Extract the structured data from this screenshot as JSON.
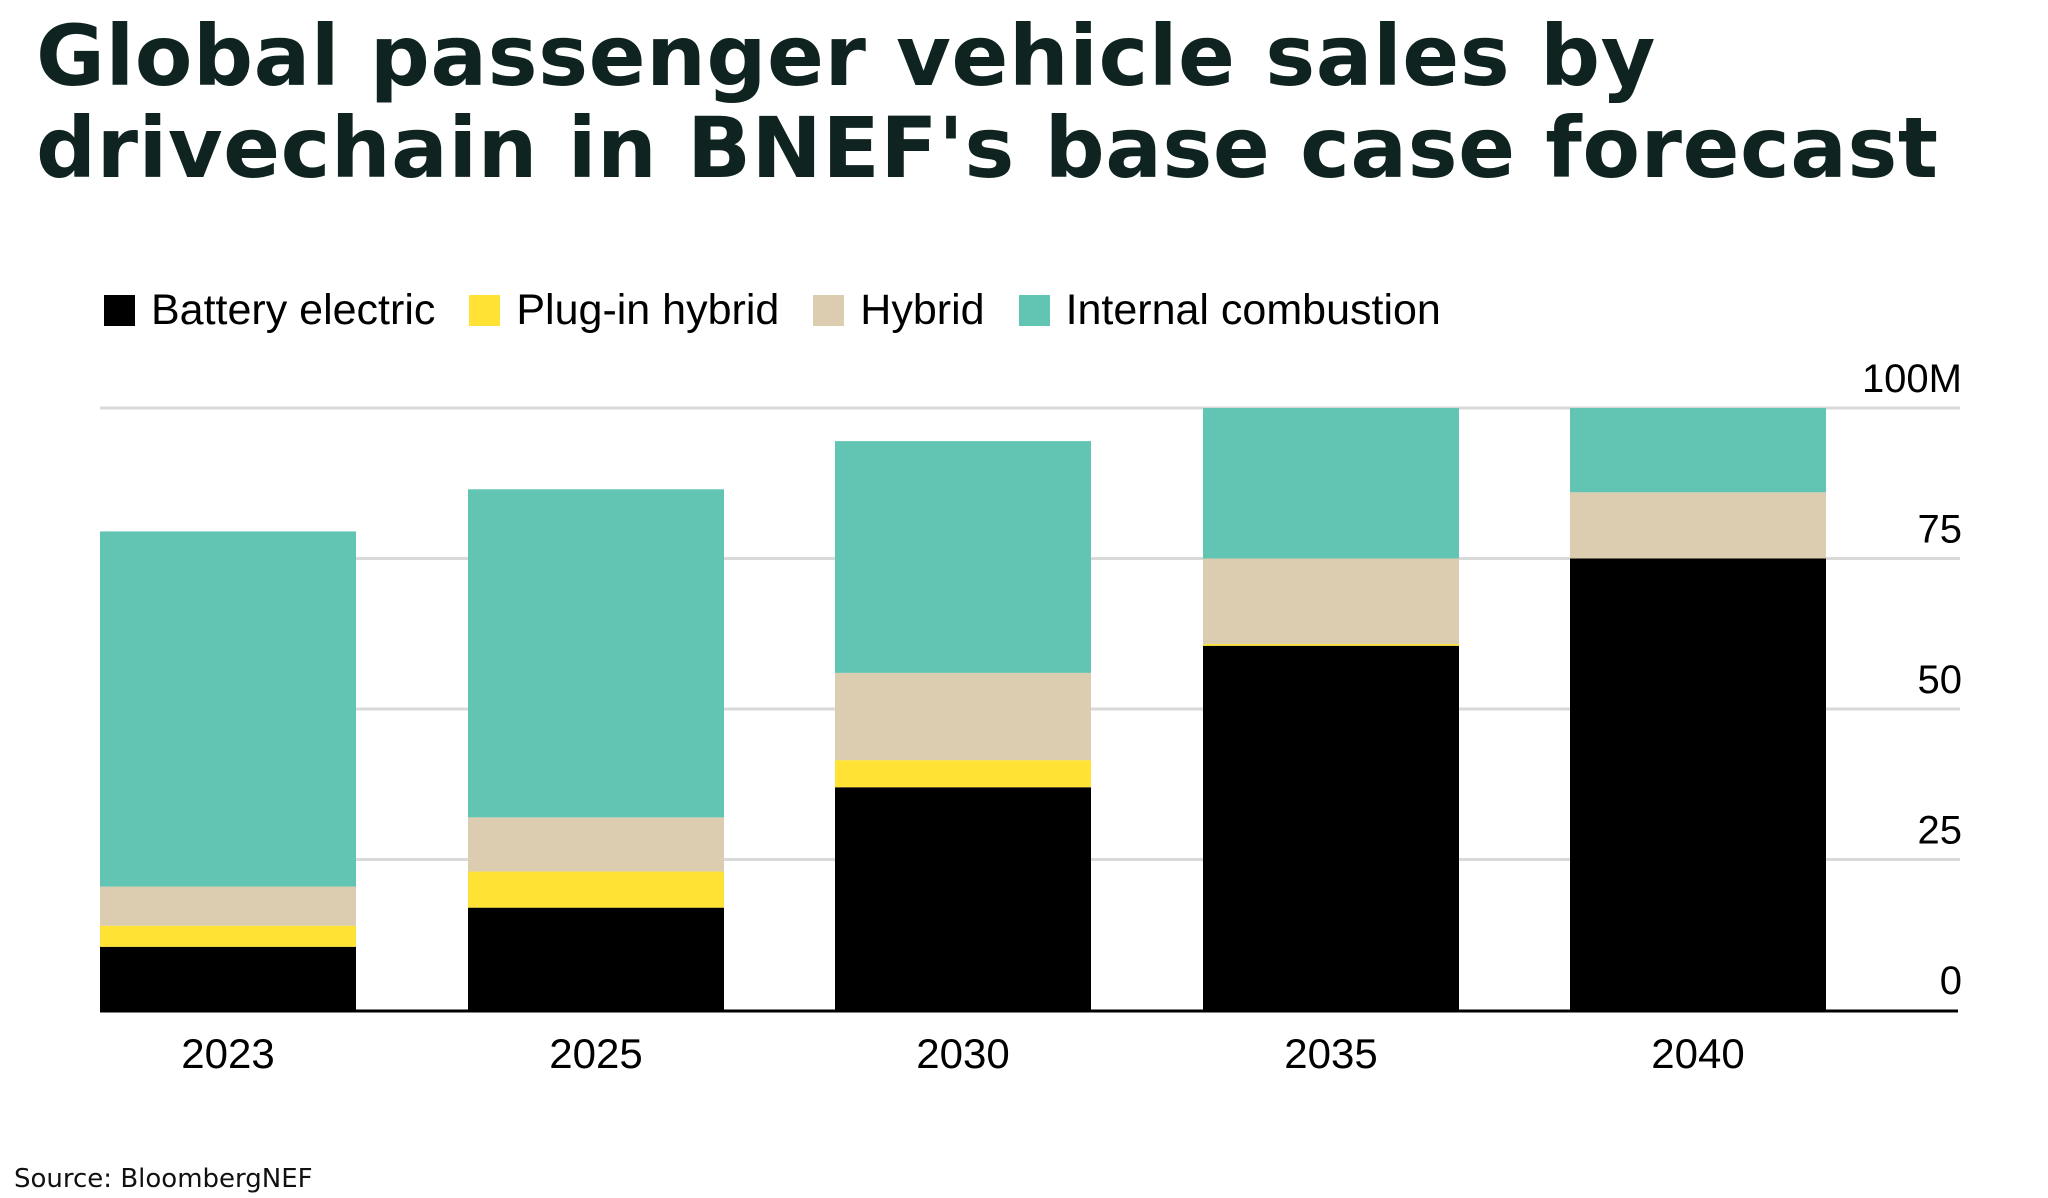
{
  "title": "Global passenger vehicle sales by drivechain in BNEF's base case forecast",
  "source": "Source: BloombergNEF",
  "colors": {
    "battery_electric": "#000000",
    "plug_in_hybrid": "#ffe233",
    "hybrid": "#ddcdb0",
    "internal_combustion": "#62c4b2",
    "gridline": "#d9d9d9",
    "axis": "#000000"
  },
  "legend": {
    "items": [
      {
        "label": "Battery electric",
        "color": "#000000"
      },
      {
        "label": "Plug-in hybrid",
        "color": "#ffe233"
      },
      {
        "label": "Hybrid",
        "color": "#ddcdb0"
      },
      {
        "label": "Internal combustion",
        "color": "#62c4b2"
      }
    ]
  },
  "chart_data": {
    "type": "bar",
    "stacked": true,
    "categories": [
      "2023",
      "2025",
      "2030",
      "2035",
      "2040"
    ],
    "series": [
      {
        "name": "Battery electric",
        "values": [
          10.5,
          17,
          37,
          60.5,
          75
        ]
      },
      {
        "name": "Plug-in hybrid",
        "values": [
          3.5,
          6,
          4.5,
          0.3,
          0
        ]
      },
      {
        "name": "Hybrid",
        "values": [
          6.5,
          9,
          14.5,
          14.2,
          11
        ]
      },
      {
        "name": "Internal combustion",
        "values": [
          59,
          54.5,
          38.5,
          25,
          14
        ]
      }
    ],
    "yticks": [
      0,
      25,
      50,
      75,
      100
    ],
    "ytick_labels": [
      "0",
      "25",
      "50",
      "75",
      "100M"
    ],
    "ylim": [
      0,
      100
    ],
    "xlabel": "",
    "ylabel": "",
    "grid": true,
    "legend_position": "top-left",
    "y_axis_side": "right"
  }
}
